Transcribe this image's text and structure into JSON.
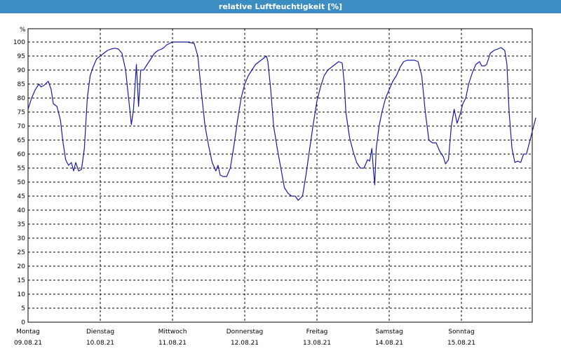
{
  "title": "relative Luftfeuchtigkeit [%]",
  "colors": {
    "titlebar": "#3d8dc5",
    "line": "#1a1aa8",
    "grid": "#000000"
  },
  "chart_data": {
    "type": "line",
    "title": "relative Luftfeuchtigkeit [%]",
    "ylabel": "%",
    "ylim": [
      0,
      100
    ],
    "ytick_step": 5,
    "grid": true,
    "grid_style": "dashed",
    "days": [
      {
        "weekday": "Montag",
        "date": "09.08.21"
      },
      {
        "weekday": "Dienstag",
        "date": "10.08.21"
      },
      {
        "weekday": "Mittwoch",
        "date": "11.08.21"
      },
      {
        "weekday": "Donnerstag",
        "date": "12.08.21"
      },
      {
        "weekday": "Freitag",
        "date": "13.08.21"
      },
      {
        "weekday": "Samstag",
        "date": "14.08.21"
      },
      {
        "weekday": "Sonntag",
        "date": "15.08.21"
      }
    ],
    "x_unit": "days since 09.08.21 00:00",
    "xlim": [
      0,
      7.03
    ],
    "series": [
      {
        "values": [
          [
            0.0,
            76
          ],
          [
            0.05,
            80
          ],
          [
            0.1,
            83
          ],
          [
            0.15,
            85
          ],
          [
            0.18,
            84
          ],
          [
            0.22,
            84.5
          ],
          [
            0.28,
            86
          ],
          [
            0.32,
            83
          ],
          [
            0.35,
            78
          ],
          [
            0.4,
            77
          ],
          [
            0.45,
            72
          ],
          [
            0.48,
            65
          ],
          [
            0.52,
            58
          ],
          [
            0.56,
            56
          ],
          [
            0.6,
            57
          ],
          [
            0.63,
            54
          ],
          [
            0.66,
            57
          ],
          [
            0.7,
            54
          ],
          [
            0.74,
            54.5
          ],
          [
            0.78,
            62
          ],
          [
            0.82,
            80
          ],
          [
            0.86,
            88
          ],
          [
            0.9,
            91
          ],
          [
            0.95,
            94
          ],
          [
            1.0,
            95
          ],
          [
            1.05,
            96
          ],
          [
            1.1,
            97
          ],
          [
            1.15,
            97.5
          ],
          [
            1.2,
            97.8
          ],
          [
            1.25,
            97.5
          ],
          [
            1.3,
            96
          ],
          [
            1.35,
            90
          ],
          [
            1.4,
            78
          ],
          [
            1.43,
            70.5
          ],
          [
            1.46,
            76
          ],
          [
            1.5,
            92
          ],
          [
            1.53,
            77
          ],
          [
            1.56,
            90
          ],
          [
            1.6,
            90
          ],
          [
            1.65,
            92
          ],
          [
            1.7,
            94
          ],
          [
            1.75,
            96
          ],
          [
            1.8,
            97
          ],
          [
            1.85,
            97.5
          ],
          [
            1.88,
            98
          ],
          [
            1.92,
            99
          ],
          [
            1.96,
            99.5
          ],
          [
            2.0,
            100
          ],
          [
            2.1,
            100
          ],
          [
            2.2,
            100
          ],
          [
            2.3,
            99.5
          ],
          [
            2.35,
            95
          ],
          [
            2.4,
            82
          ],
          [
            2.45,
            70
          ],
          [
            2.5,
            63
          ],
          [
            2.55,
            57
          ],
          [
            2.6,
            54
          ],
          [
            2.63,
            56
          ],
          [
            2.66,
            52.5
          ],
          [
            2.7,
            52
          ],
          [
            2.75,
            52
          ],
          [
            2.8,
            55
          ],
          [
            2.85,
            63
          ],
          [
            2.9,
            72
          ],
          [
            2.95,
            80
          ],
          [
            3.0,
            85
          ],
          [
            3.05,
            88
          ],
          [
            3.1,
            90
          ],
          [
            3.15,
            92
          ],
          [
            3.2,
            93
          ],
          [
            3.25,
            94
          ],
          [
            3.3,
            95
          ],
          [
            3.32,
            93
          ],
          [
            3.36,
            83
          ],
          [
            3.4,
            70
          ],
          [
            3.45,
            62
          ],
          [
            3.5,
            55
          ],
          [
            3.55,
            48
          ],
          [
            3.6,
            46
          ],
          [
            3.65,
            45
          ],
          [
            3.7,
            45
          ],
          [
            3.74,
            43.5
          ],
          [
            3.8,
            45
          ],
          [
            3.85,
            53
          ],
          [
            3.9,
            62
          ],
          [
            3.95,
            71
          ],
          [
            4.0,
            79
          ],
          [
            4.05,
            84
          ],
          [
            4.1,
            88
          ],
          [
            4.15,
            90
          ],
          [
            4.2,
            91
          ],
          [
            4.25,
            92
          ],
          [
            4.3,
            93
          ],
          [
            4.35,
            92.5
          ],
          [
            4.38,
            85
          ],
          [
            4.4,
            75
          ],
          [
            4.45,
            66
          ],
          [
            4.5,
            61
          ],
          [
            4.55,
            57
          ],
          [
            4.6,
            55
          ],
          [
            4.65,
            55
          ],
          [
            4.7,
            58
          ],
          [
            4.73,
            57.5
          ],
          [
            4.76,
            62
          ],
          [
            4.78,
            55
          ],
          [
            4.8,
            49
          ],
          [
            4.82,
            62
          ],
          [
            4.86,
            70
          ],
          [
            4.9,
            75
          ],
          [
            4.95,
            80
          ],
          [
            5.0,
            83
          ],
          [
            5.05,
            86
          ],
          [
            5.1,
            88
          ],
          [
            5.15,
            91
          ],
          [
            5.2,
            93
          ],
          [
            5.25,
            93.5
          ],
          [
            5.3,
            93.5
          ],
          [
            5.35,
            93.5
          ],
          [
            5.4,
            93
          ],
          [
            5.45,
            88
          ],
          [
            5.5,
            75
          ],
          [
            5.55,
            65
          ],
          [
            5.6,
            64
          ],
          [
            5.65,
            64
          ],
          [
            5.7,
            61
          ],
          [
            5.75,
            59
          ],
          [
            5.78,
            56.5
          ],
          [
            5.82,
            58
          ],
          [
            5.86,
            70
          ],
          [
            5.9,
            76
          ],
          [
            5.94,
            71
          ],
          [
            5.98,
            74
          ],
          [
            6.02,
            78
          ],
          [
            6.06,
            80
          ],
          [
            6.1,
            85
          ],
          [
            6.15,
            89
          ],
          [
            6.2,
            92
          ],
          [
            6.25,
            93
          ],
          [
            6.28,
            91.5
          ],
          [
            6.32,
            91.5
          ],
          [
            6.35,
            92
          ],
          [
            6.4,
            96
          ],
          [
            6.45,
            97
          ],
          [
            6.5,
            97.5
          ],
          [
            6.55,
            98
          ],
          [
            6.6,
            97
          ],
          [
            6.63,
            92
          ],
          [
            6.66,
            75
          ],
          [
            6.7,
            62
          ],
          [
            6.74,
            57
          ],
          [
            6.78,
            57.5
          ],
          [
            6.82,
            57
          ],
          [
            6.86,
            60
          ],
          [
            6.9,
            60
          ],
          [
            6.95,
            65
          ],
          [
            7.0,
            70
          ],
          [
            7.03,
            73
          ]
        ]
      }
    ]
  }
}
